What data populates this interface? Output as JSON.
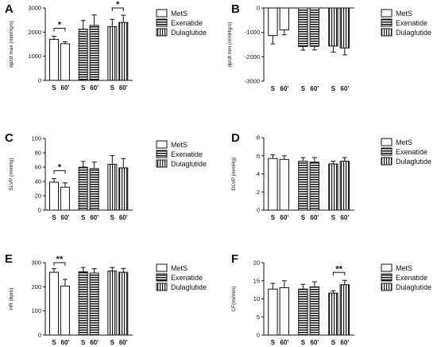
{
  "legend": [
    "MetS",
    "Exenatide",
    "Dulaglutide"
  ],
  "x_tick_labels": [
    "S",
    "60'"
  ],
  "colors": {
    "bar_fill": "#ffffff",
    "stroke": "#111111",
    "hatch": "#111111"
  },
  "chart_data": [
    {
      "panel": "A",
      "type": "bar",
      "ylabel": "dp/dt max (mmHg/s)",
      "ylim": [
        0,
        3000
      ],
      "yticks": [
        "0",
        "1000",
        "2000",
        "3000"
      ],
      "groups": [
        "MetS",
        "Exenatide",
        "Dulaglutide"
      ],
      "categories": [
        "S",
        "60'"
      ],
      "series": [
        {
          "name": "MetS",
          "values": [
            1700,
            1520
          ],
          "errors": [
            130,
            80
          ]
        },
        {
          "name": "Exenatide",
          "values": [
            2120,
            2280
          ],
          "errors": [
            360,
            430
          ]
        },
        {
          "name": "Dulaglutide",
          "values": [
            2230,
            2400
          ],
          "errors": [
            300,
            300
          ]
        }
      ],
      "annotations": [
        {
          "group": 0,
          "text": "*"
        },
        {
          "group": 2,
          "text": "*"
        }
      ]
    },
    {
      "panel": "B",
      "type": "bar",
      "ylabel": "dp/dt min (mmHg/s)",
      "ylim": [
        -3000,
        0
      ],
      "yticks": [
        "-3000",
        "-2000",
        "-1000",
        "0"
      ],
      "groups": [
        "MetS",
        "Exenatide",
        "Dulaglutide"
      ],
      "categories": [
        "S",
        "60'"
      ],
      "series": [
        {
          "name": "MetS",
          "values": [
            -1130,
            -900
          ],
          "errors": [
            340,
            200
          ]
        },
        {
          "name": "Exenatide",
          "values": [
            -1580,
            -1570
          ],
          "errors": [
            150,
            150
          ]
        },
        {
          "name": "Dulaglutide",
          "values": [
            -1560,
            -1640
          ],
          "errors": [
            250,
            280
          ]
        }
      ],
      "annotations": []
    },
    {
      "panel": "C",
      "type": "bar",
      "ylabel": "SLVP (mmHg)",
      "ylim": [
        0,
        100
      ],
      "yticks": [
        "0",
        "20",
        "40",
        "60",
        "80",
        "100"
      ],
      "groups": [
        "MetS",
        "Exenatide",
        "Dulaglutide"
      ],
      "categories": [
        "S",
        "60'"
      ],
      "series": [
        {
          "name": "MetS",
          "values": [
            39,
            32
          ],
          "errors": [
            5,
            6
          ]
        },
        {
          "name": "Exenatide",
          "values": [
            60,
            58
          ],
          "errors": [
            8,
            9
          ]
        },
        {
          "name": "Dulaglutide",
          "values": [
            64,
            59
          ],
          "errors": [
            12,
            13
          ]
        }
      ],
      "annotations": [
        {
          "group": 0,
          "text": "*"
        }
      ]
    },
    {
      "panel": "D",
      "type": "bar",
      "ylabel": "DLVP (mmHg)",
      "ylim": [
        0,
        8
      ],
      "yticks": [
        "0",
        "2",
        "4",
        "6",
        "8"
      ],
      "groups": [
        "MetS",
        "Exenatide",
        "Dulaglutide"
      ],
      "categories": [
        "S",
        "60'"
      ],
      "series": [
        {
          "name": "MetS",
          "values": [
            5.7,
            5.6
          ],
          "errors": [
            0.4,
            0.4
          ]
        },
        {
          "name": "Exenatide",
          "values": [
            5.4,
            5.3
          ],
          "errors": [
            0.4,
            0.5
          ]
        },
        {
          "name": "Dulaglutide",
          "values": [
            5.1,
            5.4
          ],
          "errors": [
            0.3,
            0.4
          ]
        }
      ],
      "annotations": []
    },
    {
      "panel": "E",
      "type": "bar",
      "ylabel": "HR (bpm)",
      "ylim": [
        0,
        300
      ],
      "yticks": [
        "0",
        "100",
        "200",
        "300"
      ],
      "groups": [
        "MetS",
        "Exenatide",
        "Dulaglutide"
      ],
      "categories": [
        "S",
        "60'"
      ],
      "series": [
        {
          "name": "MetS",
          "values": [
            260,
            203
          ],
          "errors": [
            15,
            28
          ]
        },
        {
          "name": "Exenatide",
          "values": [
            262,
            257
          ],
          "errors": [
            18,
            18
          ]
        },
        {
          "name": "Dulaglutide",
          "values": [
            265,
            260
          ],
          "errors": [
            15,
            16
          ]
        }
      ],
      "annotations": [
        {
          "group": 0,
          "text": "**"
        }
      ]
    },
    {
      "panel": "F",
      "type": "bar",
      "ylabel": "CF(ml/min)",
      "ylim": [
        0,
        20
      ],
      "yticks": [
        "0",
        "5",
        "10",
        "15",
        "20"
      ],
      "groups": [
        "MetS",
        "Exenatide",
        "Dulaglutide"
      ],
      "categories": [
        "S",
        "60'"
      ],
      "series": [
        {
          "name": "MetS",
          "values": [
            12.7,
            13.1
          ],
          "errors": [
            1.6,
            1.9
          ]
        },
        {
          "name": "Exenatide",
          "values": [
            12.7,
            13.3
          ],
          "errors": [
            1.3,
            1.4
          ]
        },
        {
          "name": "Dulaglutide",
          "values": [
            11.6,
            13.9
          ],
          "errors": [
            0.6,
            1.2
          ]
        }
      ],
      "annotations": [
        {
          "group": 2,
          "text": "**"
        }
      ]
    }
  ]
}
